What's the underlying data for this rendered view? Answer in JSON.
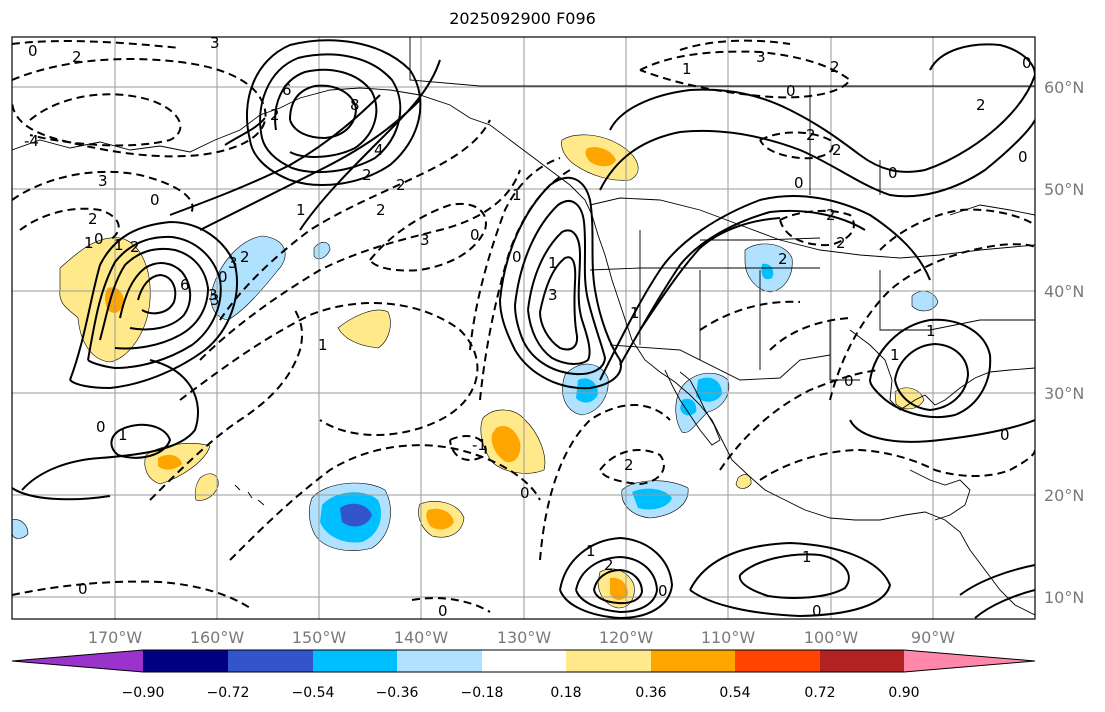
{
  "title": "2025092900 F096",
  "lon_ticks": [
    "170°W",
    "160°W",
    "150°W",
    "140°W",
    "130°W",
    "120°W",
    "110°W",
    "100°W",
    "90°W"
  ],
  "lat_ticks": [
    "60°N",
    "50°N",
    "40°N",
    "30°N",
    "20°N",
    "10°N"
  ],
  "colorbar": {
    "colors": [
      "#9933cc",
      "#000080",
      "#3355cc",
      "#00bfff",
      "#b0e2ff",
      "#ffffff",
      "#ffe98a",
      "#ffa500",
      "#ff4500",
      "#b22222",
      "#ff88aa"
    ],
    "tick_labels": [
      "−0.90",
      "−0.72",
      "−0.54",
      "−0.36",
      "−0.18",
      "0.18",
      "0.36",
      "0.54",
      "0.72",
      "0.90"
    ]
  },
  "contour_labels": [
    "0",
    "2",
    "3",
    "-4",
    "3",
    "2",
    "0",
    "1",
    "2",
    "1",
    "0",
    "3",
    "6",
    "8",
    "6",
    "4",
    "2",
    "1",
    "2",
    "2",
    "3",
    "3",
    "2",
    "1",
    "0",
    "1",
    "-1",
    "0",
    "0",
    "3",
    "3",
    "1",
    "2",
    "2",
    "2",
    "0",
    "2",
    "2",
    "1",
    "2",
    "2",
    "0",
    "0",
    "1",
    "1",
    "0",
    "1",
    "2",
    "1",
    "0",
    "0",
    "2",
    "0",
    "3",
    "0",
    "2",
    "1",
    "0",
    "0",
    "0",
    "1",
    "0",
    "0",
    "0"
  ]
}
